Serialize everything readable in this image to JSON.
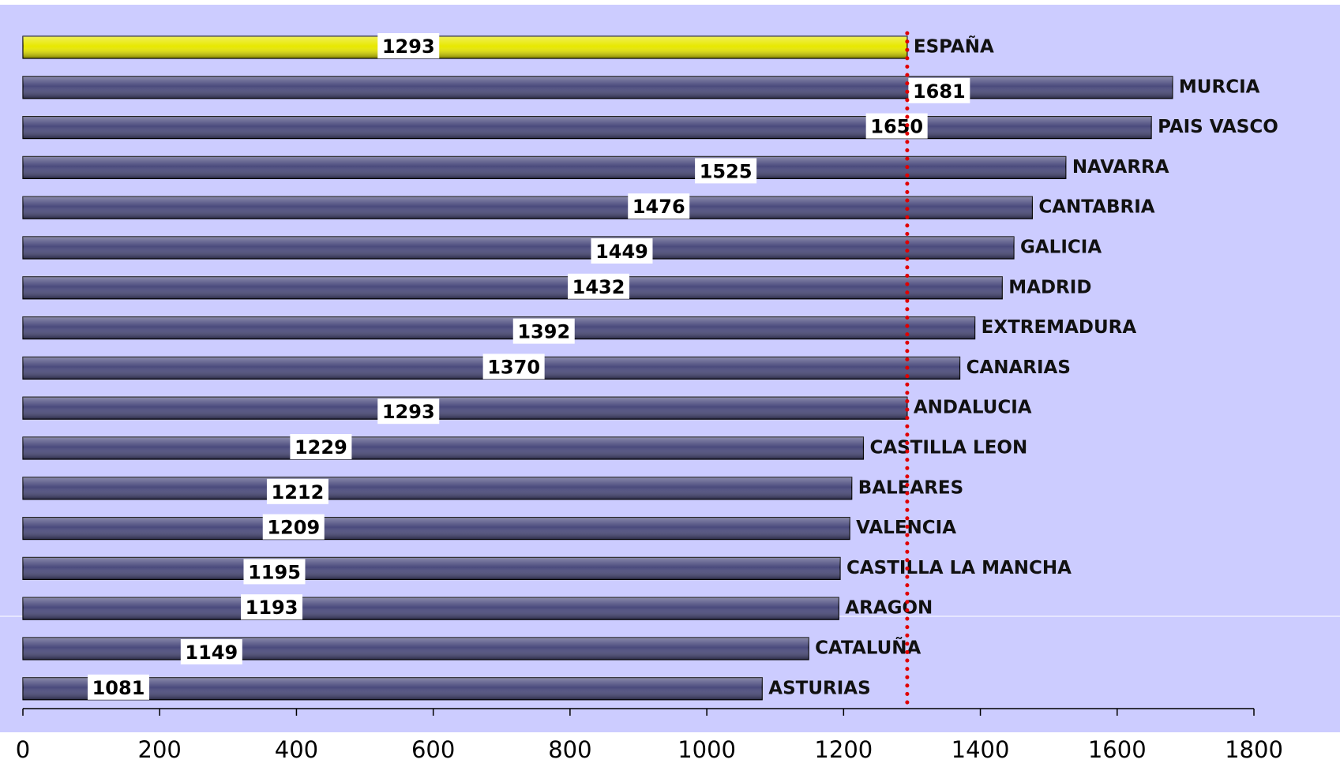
{
  "chart_data": {
    "type": "bar",
    "orientation": "horizontal",
    "categories": [
      "ESPAÑA",
      "MURCIA",
      "PAIS VASCO",
      "NAVARRA",
      "CANTABRIA",
      "GALICIA",
      "MADRID",
      "EXTREMADURA",
      "CANARIAS",
      "ANDALUCIA",
      "CASTILLA LEON",
      "BALEARES",
      "VALENCIA",
      "CASTILLA LA MANCHA",
      "ARAGON",
      "CATALUÑA",
      "ASTURIAS"
    ],
    "values": [
      1293,
      1681,
      1650,
      1525,
      1476,
      1449,
      1432,
      1392,
      1370,
      1293,
      1229,
      1212,
      1209,
      1195,
      1193,
      1149,
      1081
    ],
    "colors": [
      "#e8e800",
      "#4b4b7d",
      "#4b4b7d",
      "#4b4b7d",
      "#4b4b7d",
      "#4b4b7d",
      "#4b4b7d",
      "#4b4b7d",
      "#4b4b7d",
      "#4b4b7d",
      "#4b4b7d",
      "#4b4b7d",
      "#4b4b7d",
      "#4b4b7d",
      "#4b4b7d",
      "#4b4b7d",
      "#4b4b7d"
    ],
    "xlim": [
      0,
      1800
    ],
    "xticks": [
      0,
      200,
      400,
      600,
      800,
      1000,
      1200,
      1400,
      1600,
      1800
    ],
    "reference_line_color": "#e00000"
  }
}
